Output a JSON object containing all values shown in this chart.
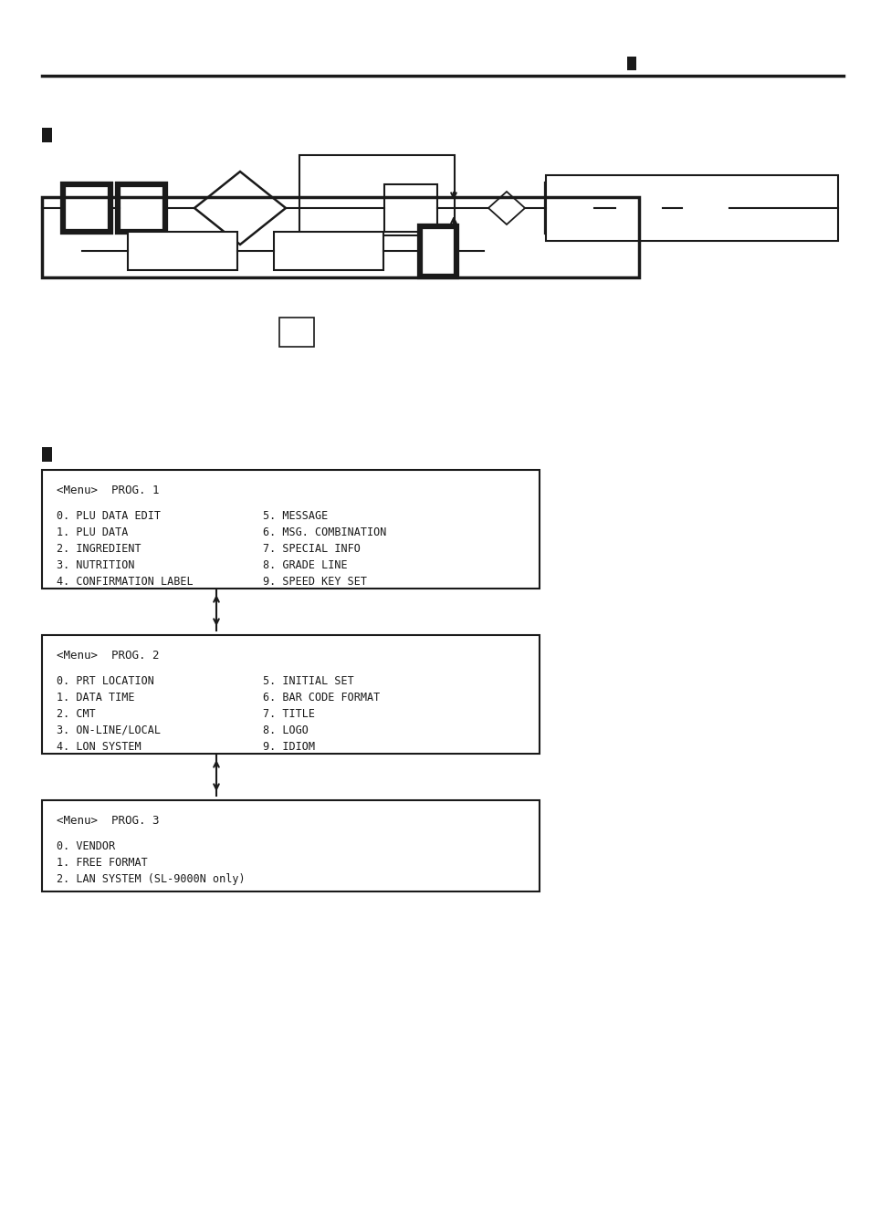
{
  "bg_color": "#ffffff",
  "text_color": "#1a1a1a",
  "line_color": "#1a1a1a",
  "prog1_title": "<Menu>  PROG. 1",
  "prog1_items_left": [
    "0. PLU DATA EDIT",
    "1. PLU DATA",
    "2. INGREDIENT",
    "3. NUTRITION",
    "4. CONFIRMATION LABEL"
  ],
  "prog1_items_right": [
    "5. MESSAGE",
    "6. MSG. COMBINATION",
    "7. SPECIAL INFO",
    "8. GRADE LINE",
    "9. SPEED KEY SET"
  ],
  "prog2_title": "<Menu>  PROG. 2",
  "prog2_items_left": [
    "0. PRT LOCATION",
    "1. DATA TIME",
    "2. CMT",
    "3. ON-LINE/LOCAL",
    "4. LON SYSTEM"
  ],
  "prog2_items_right": [
    "5. INITIAL SET",
    "6. BAR CODE FORMAT",
    "7. TITLE",
    "8. LOGO",
    "9. IDIOM"
  ],
  "prog3_title": "<Menu>  PROG. 3",
  "prog3_items": [
    "0. VENDOR",
    "1. FREE FORMAT",
    "2. LAN SYSTEM (SL-9000N only)"
  ]
}
